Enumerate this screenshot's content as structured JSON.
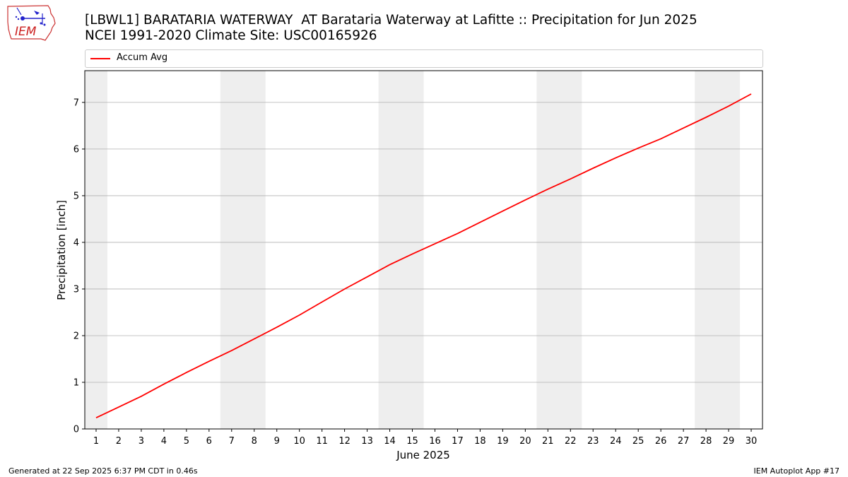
{
  "header": {
    "title": "[LBWL1] BARATARIA WATERWAY  AT Barataria Waterway at Lafitte :: Precipitation for Jun 2025",
    "subtitle": "NCEI 1991-2020 Climate Site: USC00165926"
  },
  "logo": {
    "text": "IEM",
    "icon": "iem-iowa-logo"
  },
  "footer": {
    "generated": "Generated at 22 Sep 2025 6:37 PM CDT in 0.46s",
    "app": "IEM Autoplot App #17"
  },
  "colors": {
    "series": "#ff0000",
    "weekend_band": "#eeeeee",
    "grid": "#b0b0b0"
  },
  "chart_data": {
    "type": "line",
    "xlabel": "June 2025",
    "ylabel": "Precipitation [inch]",
    "xlim": [
      0.5,
      30.5
    ],
    "ylim": [
      0,
      7.68
    ],
    "x_ticks": [
      1,
      2,
      3,
      4,
      5,
      6,
      7,
      8,
      9,
      10,
      11,
      12,
      13,
      14,
      15,
      16,
      17,
      18,
      19,
      20,
      21,
      22,
      23,
      24,
      25,
      26,
      27,
      28,
      29,
      30
    ],
    "y_ticks": [
      0,
      1,
      2,
      3,
      4,
      5,
      6,
      7
    ],
    "grid": "horizontal",
    "legend": "top",
    "weekend_bands": [
      [
        0.5,
        1.5
      ],
      [
        6.5,
        8.5
      ],
      [
        13.5,
        15.5
      ],
      [
        20.5,
        22.5
      ],
      [
        27.5,
        29.5
      ]
    ],
    "series": [
      {
        "name": "Accum Avg",
        "color": "#ff0000",
        "x": [
          1,
          2,
          3,
          4,
          5,
          6,
          7,
          8,
          9,
          10,
          11,
          12,
          13,
          14,
          15,
          16,
          17,
          18,
          19,
          20,
          21,
          22,
          23,
          24,
          25,
          26,
          27,
          28,
          29,
          30
        ],
        "values": [
          0.24,
          0.47,
          0.7,
          0.96,
          1.21,
          1.45,
          1.68,
          1.93,
          2.18,
          2.44,
          2.72,
          3.0,
          3.26,
          3.52,
          3.75,
          3.97,
          4.19,
          4.43,
          4.67,
          4.91,
          5.14,
          5.36,
          5.59,
          5.81,
          6.02,
          6.22,
          6.45,
          6.68,
          6.92,
          7.18
        ]
      }
    ]
  }
}
